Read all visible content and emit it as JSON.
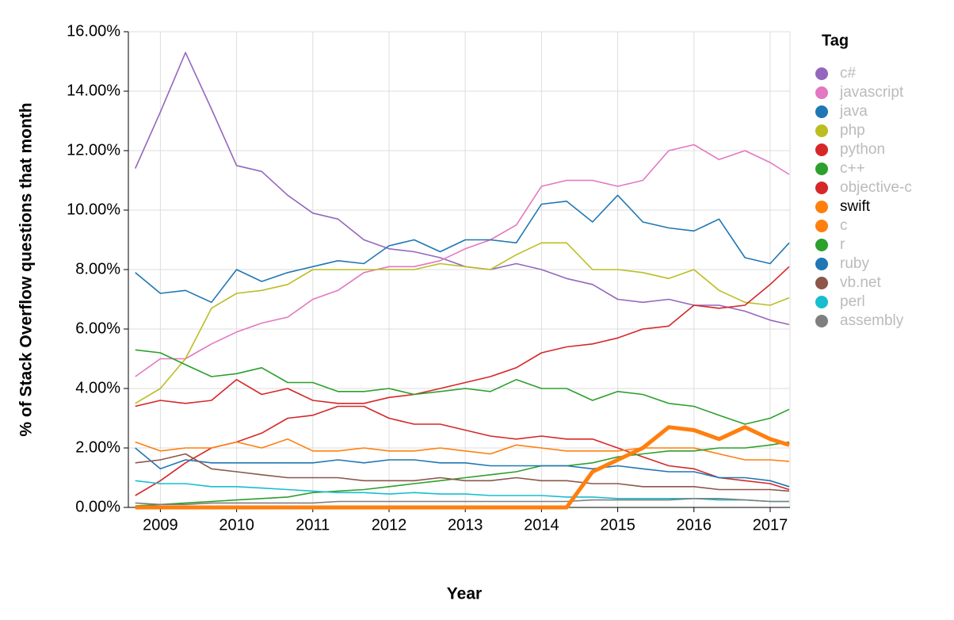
{
  "chart_data": {
    "type": "line",
    "y_label": "% of Stack Overflow questions that month",
    "x_label": "Year",
    "legend_title": "Tag",
    "legend": "right",
    "selected": "swift",
    "grid": true,
    "xlim": [
      2008.58,
      2017.26
    ],
    "xticks": [
      2009,
      2010,
      2011,
      2012,
      2013,
      2014,
      2015,
      2016,
      2017
    ],
    "ylim": [
      0,
      16
    ],
    "yticks": [
      {
        "value": 0,
        "label": "0.00%"
      },
      {
        "value": 2,
        "label": "2.00%"
      },
      {
        "value": 4,
        "label": "4.00%"
      },
      {
        "value": 6,
        "label": "6.00%"
      },
      {
        "value": 8,
        "label": "8.00%"
      },
      {
        "value": 10,
        "label": "10.00%"
      },
      {
        "value": 12,
        "label": "12.00%"
      },
      {
        "value": 14,
        "label": "14.00%"
      },
      {
        "value": 16,
        "label": "16.00%"
      }
    ],
    "x": [
      2008.67,
      2009,
      2009.33,
      2009.67,
      2010,
      2010.33,
      2010.67,
      2011,
      2011.33,
      2011.67,
      2012,
      2012.33,
      2012.67,
      2013,
      2013.33,
      2013.67,
      2014,
      2014.33,
      2014.67,
      2015,
      2015.33,
      2015.67,
      2016,
      2016.33,
      2016.67,
      2017,
      2017.25
    ],
    "series": [
      {
        "name": "c#",
        "color": "#9467bd",
        "values": [
          11.4,
          13.3,
          15.3,
          13.4,
          11.5,
          11.3,
          10.5,
          9.9,
          9.7,
          9.0,
          8.7,
          8.6,
          8.4,
          8.1,
          8.0,
          8.2,
          8.0,
          7.7,
          7.5,
          7.0,
          6.9,
          7.0,
          6.8,
          6.8,
          6.6,
          6.3,
          6.15
        ]
      },
      {
        "name": "javascript",
        "color": "#e377c2",
        "values": [
          4.4,
          5.0,
          5.0,
          5.5,
          5.9,
          6.2,
          6.4,
          7.0,
          7.3,
          7.9,
          8.1,
          8.1,
          8.3,
          8.7,
          9.0,
          9.5,
          10.8,
          11.0,
          11.0,
          10.8,
          11.0,
          12.0,
          12.2,
          11.7,
          12.0,
          11.6,
          11.2
        ]
      },
      {
        "name": "java",
        "color": "#1f77b4",
        "values": [
          7.9,
          7.2,
          7.3,
          6.9,
          8.0,
          7.6,
          7.9,
          8.1,
          8.3,
          8.2,
          8.8,
          9.0,
          8.6,
          9.0,
          9.0,
          8.9,
          10.2,
          10.3,
          9.6,
          10.5,
          9.6,
          9.4,
          9.3,
          9.7,
          8.4,
          8.2,
          8.9
        ]
      },
      {
        "name": "php",
        "color": "#bcbd22",
        "values": [
          3.5,
          4.0,
          5.0,
          6.7,
          7.2,
          7.3,
          7.5,
          8.0,
          8.0,
          8.0,
          8.0,
          8.0,
          8.2,
          8.1,
          8.0,
          8.5,
          8.9,
          8.9,
          8.0,
          8.0,
          7.9,
          7.7,
          8.0,
          7.3,
          6.9,
          6.8,
          7.05
        ]
      },
      {
        "name": "python",
        "color": "#d62728",
        "values": [
          3.4,
          3.6,
          3.5,
          3.6,
          4.3,
          3.8,
          4.0,
          3.6,
          3.5,
          3.5,
          3.7,
          3.8,
          4.0,
          4.2,
          4.4,
          4.7,
          5.2,
          5.4,
          5.5,
          5.7,
          6.0,
          6.1,
          6.8,
          6.7,
          6.8,
          7.5,
          8.1
        ]
      },
      {
        "name": "c++",
        "color": "#2ca02c",
        "values": [
          5.3,
          5.2,
          4.8,
          4.4,
          4.5,
          4.7,
          4.2,
          4.2,
          3.9,
          3.9,
          4.0,
          3.8,
          3.9,
          4.0,
          3.9,
          4.3,
          4.0,
          4.0,
          3.6,
          3.9,
          3.8,
          3.5,
          3.4,
          3.1,
          2.8,
          3.0,
          3.3
        ]
      },
      {
        "name": "objective-c",
        "color": "#d62728",
        "values": [
          0.4,
          0.9,
          1.5,
          2.0,
          2.2,
          2.5,
          3.0,
          3.1,
          3.4,
          3.4,
          3.0,
          2.8,
          2.8,
          2.6,
          2.4,
          2.3,
          2.4,
          2.3,
          2.3,
          2.0,
          1.7,
          1.4,
          1.3,
          1.0,
          0.9,
          0.8,
          0.6
        ]
      },
      {
        "name": "swift",
        "color": "#ff7f0e",
        "values": [
          0,
          0,
          0,
          0,
          0,
          0,
          0,
          0,
          0,
          0,
          0,
          0,
          0,
          0,
          0,
          0,
          0,
          0,
          1.2,
          1.6,
          2.0,
          2.7,
          2.6,
          2.3,
          2.7,
          2.3,
          2.1
        ]
      },
      {
        "name": "c",
        "color": "#ff7f0e",
        "values": [
          2.2,
          1.9,
          2.0,
          2.0,
          2.2,
          2.0,
          2.3,
          1.9,
          1.9,
          2.0,
          1.9,
          1.9,
          2.0,
          1.9,
          1.8,
          2.1,
          2.0,
          1.9,
          1.9,
          1.9,
          2.0,
          2.0,
          2.0,
          1.8,
          1.6,
          1.6,
          1.55
        ]
      },
      {
        "name": "r",
        "color": "#2ca02c",
        "values": [
          0.05,
          0.1,
          0.15,
          0.2,
          0.25,
          0.3,
          0.35,
          0.5,
          0.55,
          0.6,
          0.7,
          0.8,
          0.9,
          1.0,
          1.1,
          1.2,
          1.4,
          1.4,
          1.5,
          1.7,
          1.8,
          1.9,
          1.9,
          2.0,
          2.0,
          2.1,
          2.2
        ]
      },
      {
        "name": "ruby",
        "color": "#1f77b4",
        "values": [
          2.0,
          1.3,
          1.6,
          1.5,
          1.5,
          1.5,
          1.5,
          1.5,
          1.6,
          1.5,
          1.6,
          1.6,
          1.5,
          1.5,
          1.4,
          1.4,
          1.4,
          1.4,
          1.3,
          1.4,
          1.3,
          1.2,
          1.2,
          1.0,
          1.0,
          0.9,
          0.7
        ]
      },
      {
        "name": "vb.net",
        "color": "#8c564b",
        "values": [
          1.5,
          1.6,
          1.8,
          1.3,
          1.2,
          1.1,
          1.0,
          1.0,
          1.0,
          0.9,
          0.9,
          0.9,
          1.0,
          0.9,
          0.9,
          1.0,
          0.9,
          0.9,
          0.8,
          0.8,
          0.7,
          0.7,
          0.7,
          0.6,
          0.6,
          0.6,
          0.55
        ]
      },
      {
        "name": "perl",
        "color": "#17becf",
        "values": [
          0.9,
          0.8,
          0.8,
          0.7,
          0.7,
          0.65,
          0.6,
          0.55,
          0.5,
          0.5,
          0.45,
          0.5,
          0.45,
          0.45,
          0.4,
          0.4,
          0.4,
          0.35,
          0.35,
          0.3,
          0.3,
          0.3,
          0.3,
          0.25,
          0.25,
          0.2,
          0.2
        ]
      },
      {
        "name": "assembly",
        "color": "#7f7f7f",
        "values": [
          0.15,
          0.1,
          0.1,
          0.15,
          0.15,
          0.15,
          0.15,
          0.15,
          0.2,
          0.2,
          0.2,
          0.2,
          0.2,
          0.2,
          0.2,
          0.2,
          0.2,
          0.2,
          0.25,
          0.25,
          0.25,
          0.25,
          0.3,
          0.3,
          0.25,
          0.2,
          0.2
        ]
      }
    ]
  }
}
